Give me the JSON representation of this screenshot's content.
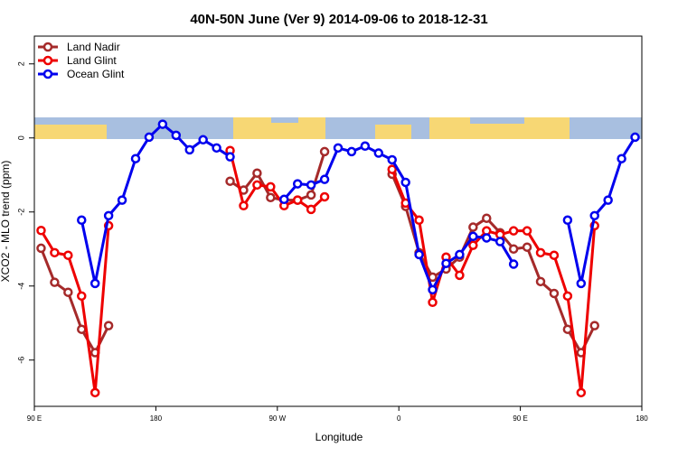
{
  "chart_data": {
    "type": "line",
    "title": "40N-50N June (Ver 9)   2014-09-06 to 2018-12-31",
    "x_label": "Longitude",
    "y_label": "XCO2 - MLO trend (ppm)",
    "xlim": [
      90,
      540
    ],
    "ylim": [
      -7.25,
      2.75
    ],
    "xticks": [
      {
        "value": 90,
        "label": "90 E"
      },
      180,
      {
        "value": 270,
        "label": "90 W"
      },
      {
        "value": 360,
        "label": "0"
      },
      {
        "value": 450,
        "label": "90 E"
      },
      180
    ],
    "yticks": [
      -6,
      -4,
      -2,
      0,
      2
    ],
    "legend": "top-left",
    "x": [
      95,
      105,
      115,
      125,
      135,
      145,
      155,
      165,
      175,
      185,
      195,
      205,
      215,
      225,
      235,
      245,
      255,
      265,
      275,
      285,
      295,
      305,
      315,
      325,
      335,
      345,
      355,
      365,
      375,
      385,
      395,
      405,
      415,
      425,
      435,
      445,
      455,
      465,
      475,
      485,
      495,
      505,
      515,
      525,
      535
    ],
    "series": [
      {
        "name": "Land Nadir",
        "color": "#a52a2a",
        "values": [
          -2.98,
          -3.9,
          -4.17,
          -5.17,
          -5.8,
          -5.07,
          null,
          null,
          null,
          null,
          null,
          null,
          null,
          null,
          -1.17,
          -1.41,
          -0.95,
          -1.61,
          -1.68,
          -1.68,
          -1.54,
          -0.37,
          null,
          null,
          null,
          null,
          -0.98,
          -1.85,
          -3.1,
          -3.76,
          -3.54,
          -3.22,
          -2.41,
          -2.17,
          -2.56,
          -3.0,
          -2.95,
          -3.88,
          -4.2,
          -5.17,
          -5.8,
          -5.07,
          null,
          null,
          null
        ]
      },
      {
        "name": "Land Glint",
        "color": "#ee0000",
        "values": [
          -2.5,
          -3.1,
          -3.17,
          -4.27,
          -6.88,
          -2.37,
          null,
          null,
          null,
          null,
          null,
          null,
          null,
          null,
          -0.34,
          -1.83,
          -1.27,
          -1.32,
          -1.83,
          -1.68,
          -1.93,
          -1.59,
          null,
          null,
          null,
          null,
          -0.85,
          -1.76,
          -2.22,
          -4.44,
          -3.22,
          -3.71,
          -2.9,
          -2.51,
          -2.61,
          -2.51,
          -2.51,
          -3.1,
          -3.17,
          -4.27,
          -6.88,
          -2.37,
          null,
          null,
          null
        ]
      },
      {
        "name": "Ocean Glint",
        "color": "#0000ee",
        "values": [
          null,
          null,
          null,
          -2.22,
          -3.93,
          -2.1,
          -1.68,
          -0.56,
          0.02,
          0.37,
          0.07,
          -0.32,
          -0.05,
          -0.27,
          -0.51,
          null,
          null,
          null,
          -1.66,
          -1.24,
          -1.27,
          -1.12,
          -0.27,
          -0.37,
          -0.22,
          -0.41,
          -0.59,
          -1.2,
          -3.15,
          -4.1,
          -3.39,
          -3.15,
          -2.66,
          -2.7,
          -2.8,
          -3.41,
          null,
          null,
          null,
          -2.22,
          -3.93,
          -2.1,
          -1.68,
          -0.56,
          0.02
        ]
      }
    ]
  }
}
